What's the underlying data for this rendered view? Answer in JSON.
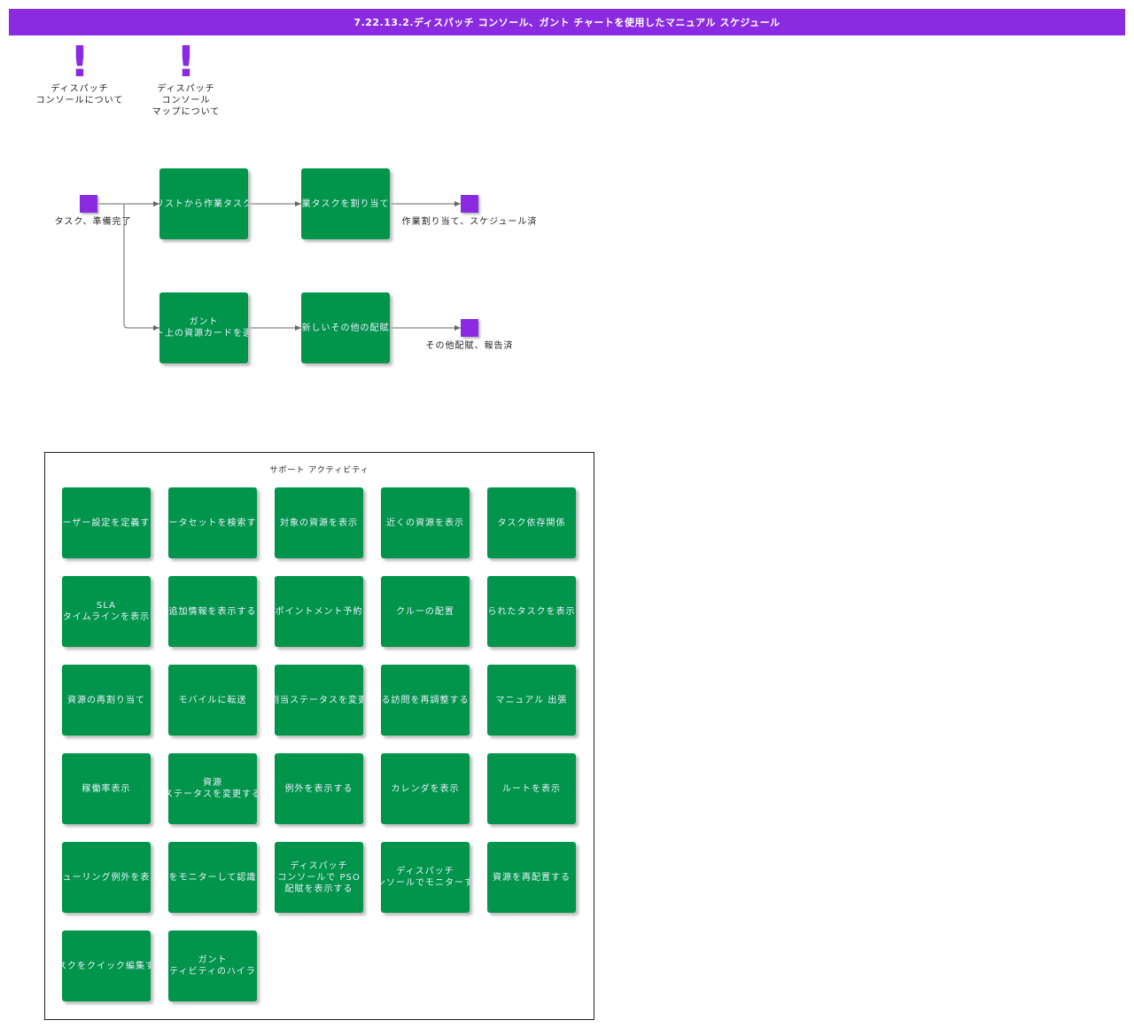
{
  "header": {
    "title": "7.22.13.2.ディスパッチ コンソール、ガント チャートを使用したマニュアル スケジュール"
  },
  "notes": [
    {
      "label": "ディスパッチ\nコンソールについて"
    },
    {
      "label": "ディスパッチ\nコンソール\nマップについて"
    }
  ],
  "flow": {
    "start": {
      "label": "タスク、準備完了"
    },
    "nodes": [
      {
        "label": "リストから作業タスク"
      },
      {
        "label": "業タスクを割り当て"
      },
      {
        "label": "ガント\nト上の資源カードを選"
      },
      {
        "label": "新しいその他の配賦"
      }
    ],
    "ends": [
      {
        "label": "作業割り当て、スケジュール済"
      },
      {
        "label": "その他配賦、報告済"
      }
    ]
  },
  "support": {
    "title": "サポート アクティビティ",
    "tiles": [
      "ーザー設定を定義す",
      "ータセットを検索す",
      "対象の資源を表示",
      "近くの資源を表示",
      "タスク依存関係",
      "SLA\nタイムラインを表示",
      "追加情報を表示する",
      "ポイントメント予約",
      "クルーの配置",
      "られたタスクを表示",
      "資源の再割り当て",
      "モバイルに転送",
      "割当ステータスを変更",
      "る訪問を再調整する",
      "マニュアル 出張",
      "稼働率表示",
      "資源\nステータスを変更する",
      "例外を表示する",
      "カレンダを表示",
      "ルートを表示",
      "ューリング例外を表",
      "をモニターして認識",
      "ディスパッチ\nコンソールで PSO\n配賦を表示する",
      "ディスパッチ\nンソールでモニターす",
      "資源を再配置する",
      "スクをクイック編集す",
      "ガント\nティビティのハイラ"
    ]
  }
}
